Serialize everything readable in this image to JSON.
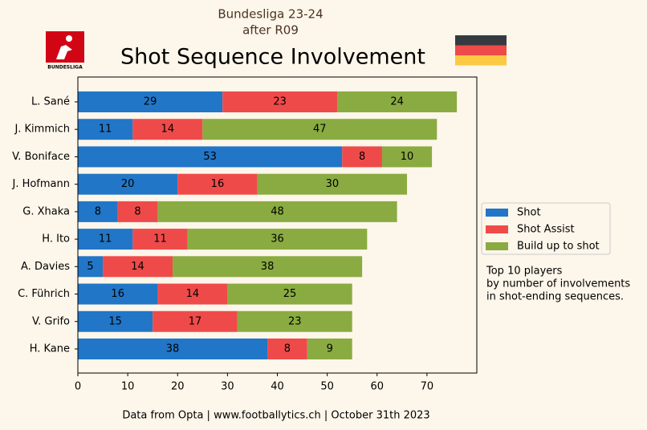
{
  "chart_data": {
    "type": "stacked-barh",
    "title": "Shot Sequence Involvement",
    "subtitle_lines": [
      "Bundesliga 23-24",
      "after R09"
    ],
    "logo_text": "BUNDESLIGA",
    "categories": [
      "L. Sané",
      "J. Kimmich",
      "V. Boniface",
      "J. Hofmann",
      "G. Xhaka",
      "H. Ito",
      "A. Davies",
      "C. Führich",
      "V. Grifo",
      "H. Kane"
    ],
    "series": [
      {
        "name": "Shot",
        "color": "#2176c7",
        "values": [
          29,
          11,
          53,
          20,
          8,
          11,
          5,
          16,
          15,
          38
        ]
      },
      {
        "name": "Shot Assist",
        "color": "#ef4a4a",
        "values": [
          23,
          14,
          8,
          16,
          8,
          11,
          14,
          14,
          17,
          8
        ]
      },
      {
        "name": "Build up to shot",
        "color": "#8aab41",
        "values": [
          24,
          47,
          10,
          30,
          48,
          36,
          38,
          25,
          23,
          9
        ]
      }
    ],
    "xlim": [
      0,
      80
    ],
    "xticks": [
      0,
      10,
      20,
      30,
      40,
      50,
      60,
      70
    ],
    "legend": "right",
    "note_lines": [
      "Top 10 players",
      "by number of involvements",
      "in shot-ending sequences."
    ],
    "footer": "Data from Opta | www.footballytics.ch | October 31th 2023"
  }
}
